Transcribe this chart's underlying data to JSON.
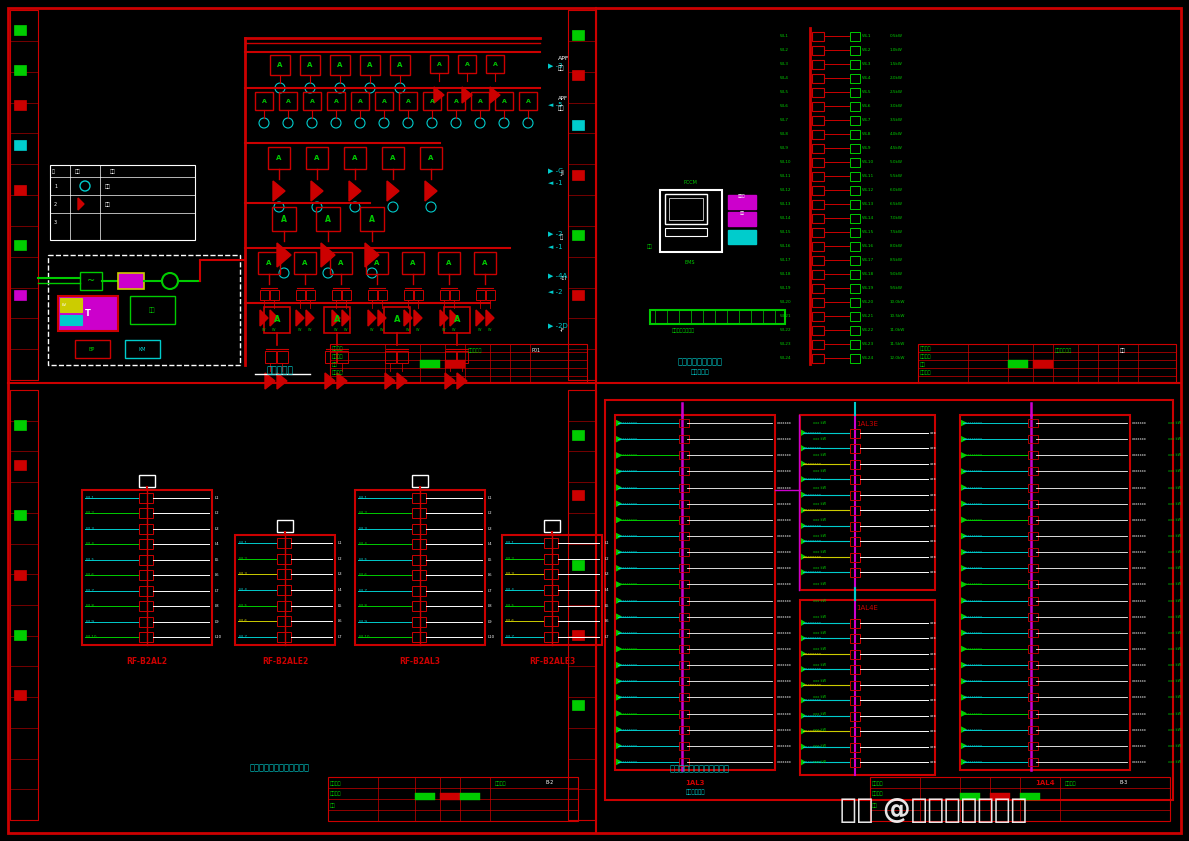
{
  "bg_color": "#000000",
  "red": "#cc0000",
  "green": "#00cc00",
  "cyan": "#00cccc",
  "yellow": "#cccc00",
  "magenta": "#cc00cc",
  "white": "#ffffff",
  "pink": "#ff88cc",
  "watermark_text": "头条 @火车头室内设计",
  "fig_width": 11.89,
  "fig_height": 8.41
}
